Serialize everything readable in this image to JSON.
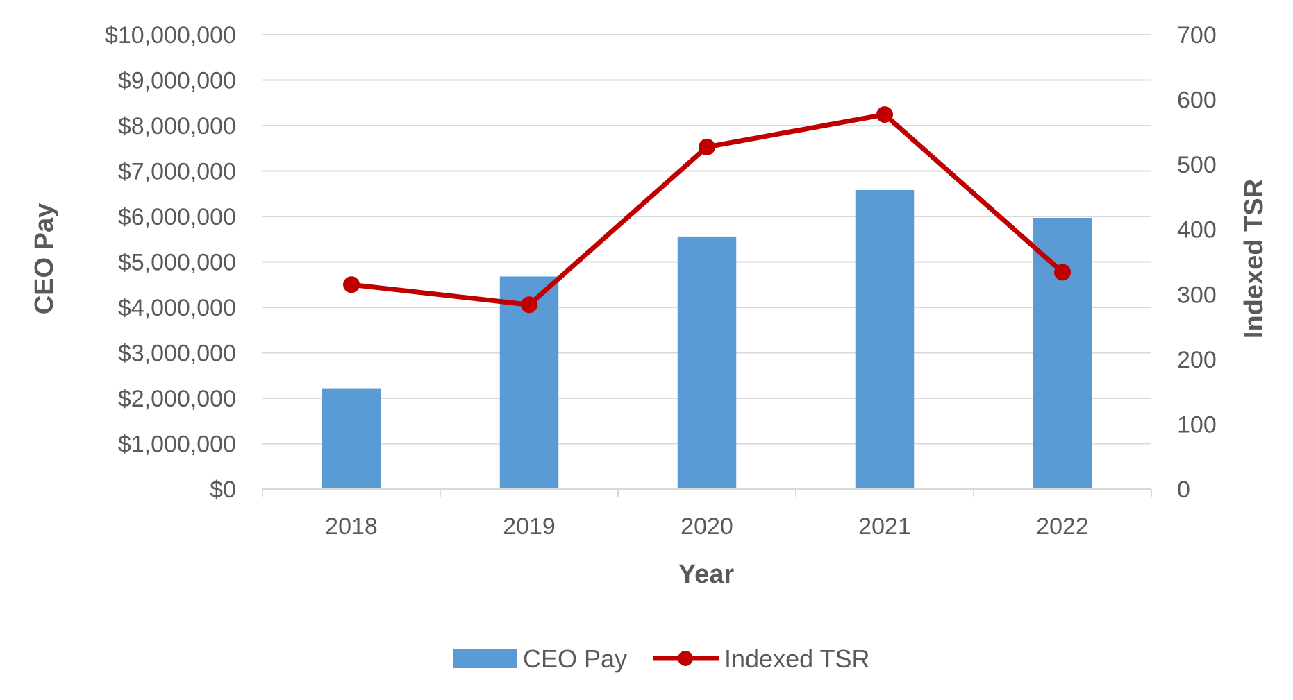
{
  "chart_data": {
    "type": "bar",
    "title": "",
    "categories": [
      "2018",
      "2019",
      "2020",
      "2021",
      "2022"
    ],
    "series": [
      {
        "name": "CEO Pay",
        "type": "bar",
        "axis": "left",
        "color": "#5B9BD5",
        "values": [
          2220000,
          4680000,
          5560000,
          6580000,
          5970000
        ]
      },
      {
        "name": "Indexed TSR",
        "type": "line",
        "axis": "right",
        "color": "#C00000",
        "values": [
          315,
          284,
          527,
          577,
          334
        ]
      }
    ],
    "xlabel": "Year",
    "ylabel": "CEO Pay",
    "y2label": "Indexed TSR",
    "ylim": [
      0,
      10000000
    ],
    "y2lim": [
      0,
      700
    ],
    "y_ticks": [
      "$0",
      "$1,000,000",
      "$2,000,000",
      "$3,000,000",
      "$4,000,000",
      "$5,000,000",
      "$6,000,000",
      "$7,000,000",
      "$8,000,000",
      "$9,000,000",
      "$10,000,000"
    ],
    "y2_ticks": [
      "0",
      "100",
      "200",
      "300",
      "400",
      "500",
      "600",
      "700"
    ],
    "legend_position": "bottom",
    "grid": true
  }
}
